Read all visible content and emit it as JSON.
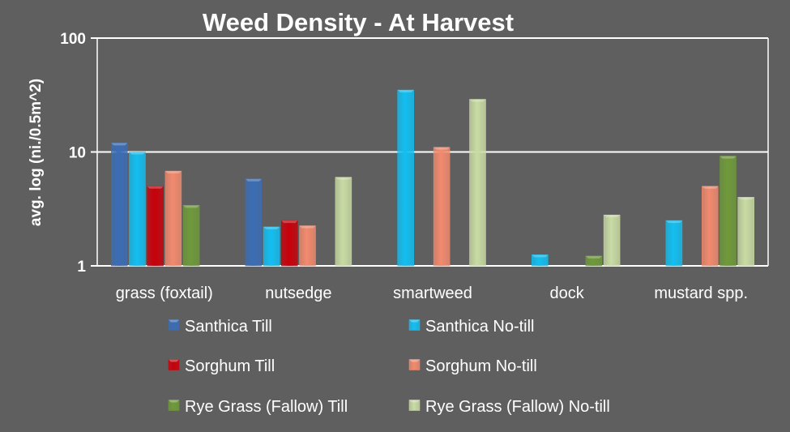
{
  "chart_data": {
    "type": "bar",
    "title": "Weed Density - At Harvest",
    "xlabel": "",
    "ylabel": "avg. log (ni./0.5m^2)",
    "yscale": "log",
    "ylim": [
      1,
      100
    ],
    "yticks": [
      "1",
      "10",
      "100"
    ],
    "grid": true,
    "legend_position": "bottom",
    "categories": [
      "grass (foxtail)",
      "nutsedge",
      "smartweed",
      "dock",
      "mustard spp."
    ],
    "series": [
      {
        "name": "Santhica Till",
        "color": "#3b6db5",
        "values": [
          12,
          5.8,
          null,
          null,
          null
        ]
      },
      {
        "name": "Santhica No-till",
        "color": "#12bff2",
        "values": [
          10,
          2.2,
          35,
          1.25,
          2.5
        ]
      },
      {
        "name": "Sorghum Till",
        "color": "#c8000a",
        "values": [
          5,
          2.5,
          null,
          null,
          null
        ]
      },
      {
        "name": "Sorghum No-till",
        "color": "#f28a6e",
        "values": [
          6.8,
          2.25,
          11,
          null,
          5
        ]
      },
      {
        "name": "Rye Grass (Fallow) Till",
        "color": "#6f9a3a",
        "values": [
          3.4,
          null,
          null,
          1.22,
          9.2
        ]
      },
      {
        "name": "Rye Grass (Fallow) No-till",
        "color": "#c9dca4",
        "values": [
          null,
          6,
          29,
          2.8,
          4
        ]
      }
    ]
  }
}
